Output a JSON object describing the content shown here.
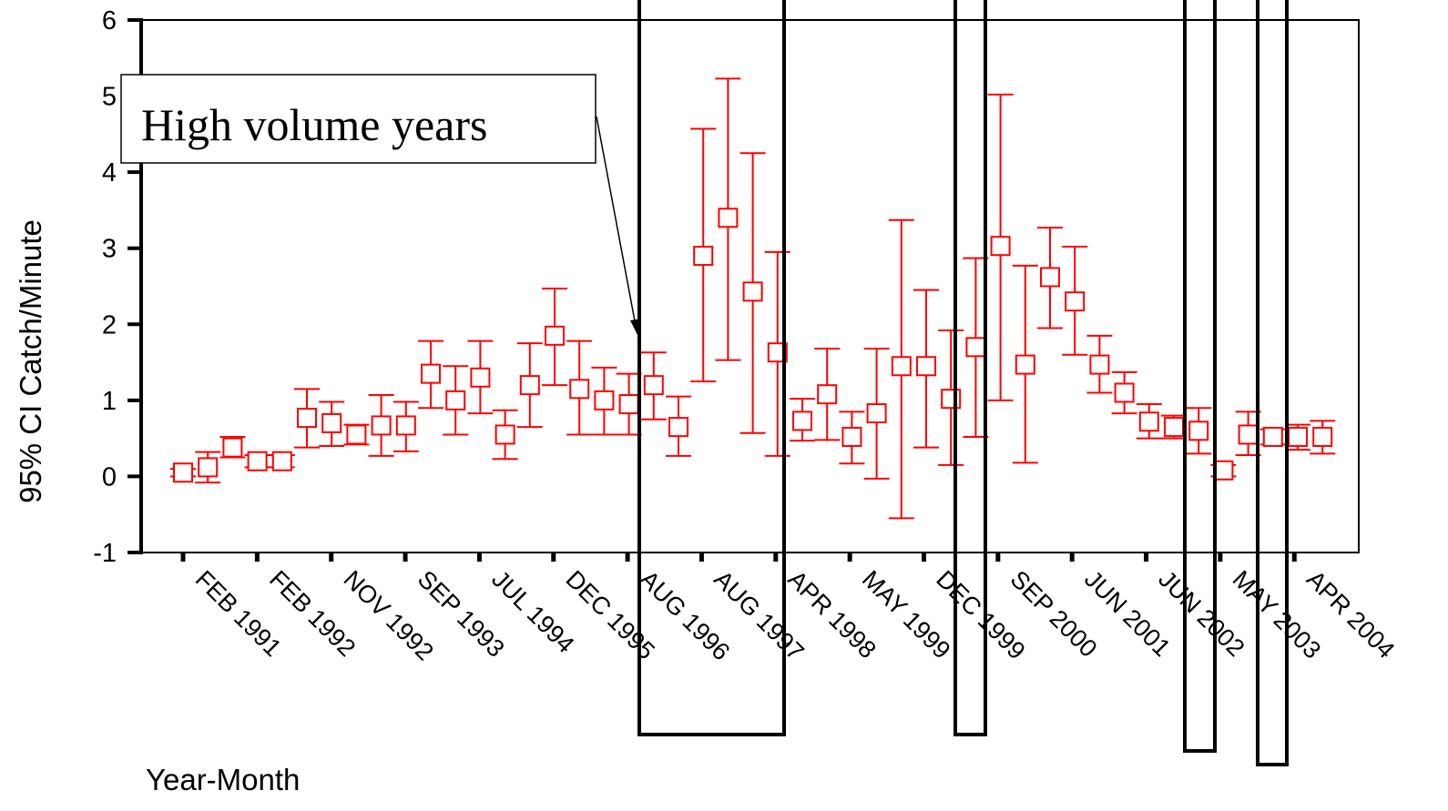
{
  "chart_data": {
    "type": "scatter",
    "xlabel": "Year-Month",
    "ylabel": "95% CI Catch/Minute",
    "ylim": [
      -1,
      6
    ],
    "yticks": [
      -1,
      0,
      1,
      2,
      3,
      4,
      5,
      6
    ],
    "xtick_labels": [
      "FEB 1991",
      "FEB 1992",
      "NOV 1992",
      "SEP 1993",
      "JUL 1994",
      "DEC 1995",
      "AUG 1996",
      "AUG 1997",
      "APR 1998",
      "MAY 1999",
      "DEC 1999",
      "SEP 2000",
      "JUN 2001",
      "JUN 2002",
      "MAY 2003",
      "APR 2004"
    ],
    "marker": "open-square",
    "series_color": "#ff0000",
    "annotation": "High volume years",
    "points": [
      {
        "mean": 0.05,
        "lower": 0.0,
        "upper": 0.1
      },
      {
        "mean": 0.12,
        "lower": -0.08,
        "upper": 0.32
      },
      {
        "mean": 0.38,
        "lower": 0.25,
        "upper": 0.52
      },
      {
        "mean": 0.2,
        "lower": 0.12,
        "upper": 0.28
      },
      {
        "mean": 0.2,
        "lower": 0.12,
        "upper": 0.28
      },
      {
        "mean": 0.77,
        "lower": 0.38,
        "upper": 1.15
      },
      {
        "mean": 0.7,
        "lower": 0.4,
        "upper": 0.98
      },
      {
        "mean": 0.55,
        "lower": 0.42,
        "upper": 0.68
      },
      {
        "mean": 0.67,
        "lower": 0.27,
        "upper": 1.07
      },
      {
        "mean": 0.67,
        "lower": 0.33,
        "upper": 0.98
      },
      {
        "mean": 1.35,
        "lower": 0.9,
        "upper": 1.78
      },
      {
        "mean": 1.0,
        "lower": 0.55,
        "upper": 1.45
      },
      {
        "mean": 1.3,
        "lower": 0.83,
        "upper": 1.78
      },
      {
        "mean": 0.55,
        "lower": 0.23,
        "upper": 0.87
      },
      {
        "mean": 1.2,
        "lower": 0.65,
        "upper": 1.75
      },
      {
        "mean": 1.85,
        "lower": 1.2,
        "upper": 2.47
      },
      {
        "mean": 1.15,
        "lower": 0.55,
        "upper": 1.78
      },
      {
        "mean": 1.0,
        "lower": 0.55,
        "upper": 1.43
      },
      {
        "mean": 0.95,
        "lower": 0.55,
        "upper": 1.35
      },
      {
        "mean": 1.2,
        "lower": 0.75,
        "upper": 1.63
      },
      {
        "mean": 0.65,
        "lower": 0.27,
        "upper": 1.05
      },
      {
        "mean": 2.9,
        "lower": 1.25,
        "upper": 4.57
      },
      {
        "mean": 3.4,
        "lower": 1.53,
        "upper": 5.23
      },
      {
        "mean": 2.43,
        "lower": 0.57,
        "upper": 4.25
      },
      {
        "mean": 1.63,
        "lower": 0.27,
        "upper": 2.95
      },
      {
        "mean": 0.73,
        "lower": 0.47,
        "upper": 1.02
      },
      {
        "mean": 1.08,
        "lower": 0.48,
        "upper": 1.68
      },
      {
        "mean": 0.52,
        "lower": 0.17,
        "upper": 0.85
      },
      {
        "mean": 0.83,
        "lower": -0.03,
        "upper": 1.68
      },
      {
        "mean": 1.45,
        "lower": -0.55,
        "upper": 3.37
      },
      {
        "mean": 1.45,
        "lower": 0.38,
        "upper": 2.45
      },
      {
        "mean": 1.02,
        "lower": 0.15,
        "upper": 1.92
      },
      {
        "mean": 1.7,
        "lower": 0.52,
        "upper": 2.87
      },
      {
        "mean": 3.03,
        "lower": 1.0,
        "upper": 5.02
      },
      {
        "mean": 1.47,
        "lower": 0.18,
        "upper": 2.77
      },
      {
        "mean": 2.62,
        "lower": 1.95,
        "upper": 3.27
      },
      {
        "mean": 2.3,
        "lower": 1.6,
        "upper": 3.02
      },
      {
        "mean": 1.47,
        "lower": 1.1,
        "upper": 1.85
      },
      {
        "mean": 1.1,
        "lower": 0.83,
        "upper": 1.37
      },
      {
        "mean": 0.72,
        "lower": 0.5,
        "upper": 0.95
      },
      {
        "mean": 0.65,
        "lower": 0.5,
        "upper": 0.8
      },
      {
        "mean": 0.6,
        "lower": 0.3,
        "upper": 0.9
      },
      {
        "mean": 0.08,
        "lower": 0.0,
        "upper": 0.15
      },
      {
        "mean": 0.55,
        "lower": 0.28,
        "upper": 0.85
      },
      {
        "mean": 0.52,
        "lower": 0.42,
        "upper": 0.62
      },
      {
        "mean": 0.52,
        "lower": 0.35,
        "upper": 0.68
      },
      {
        "mean": 0.52,
        "lower": 0.3,
        "upper": 0.73
      }
    ]
  }
}
